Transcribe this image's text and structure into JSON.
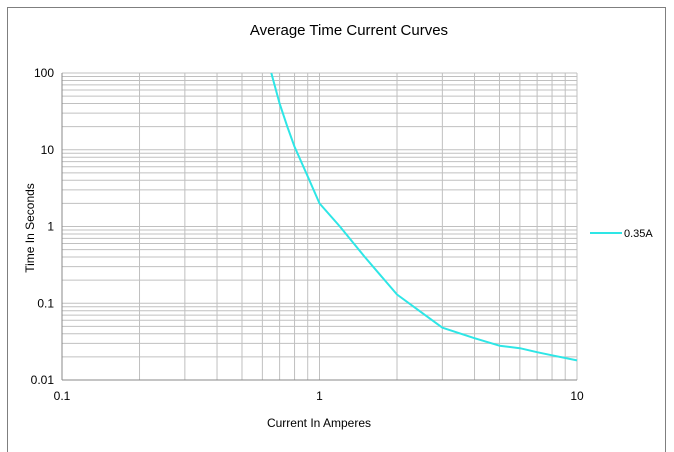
{
  "chart_data": {
    "type": "line",
    "title": "Average Time Current Curves",
    "xlabel": "Current In Amperes",
    "ylabel": "Time In Seconds",
    "x_scale": "log",
    "y_scale": "log",
    "xlim": [
      0.1,
      10
    ],
    "ylim": [
      0.01,
      100
    ],
    "x_ticks": [
      "0.1",
      "1",
      "10"
    ],
    "y_ticks": [
      "100",
      "10",
      "1",
      "0.1",
      "0.01"
    ],
    "grid": true,
    "legend_position": "right",
    "series": [
      {
        "name": "0.35A",
        "color": "#2ee6e6",
        "x": [
          0.65,
          0.7,
          0.75,
          0.8,
          0.9,
          1.0,
          1.2,
          1.5,
          2.0,
          2.5,
          3.0,
          4.0,
          5.0,
          6.0,
          7.0,
          8.0,
          10.0
        ],
        "y": [
          100,
          40,
          20,
          11,
          4.5,
          2.0,
          1.0,
          0.4,
          0.13,
          0.075,
          0.048,
          0.035,
          0.028,
          0.026,
          0.023,
          0.021,
          0.018
        ]
      }
    ]
  }
}
